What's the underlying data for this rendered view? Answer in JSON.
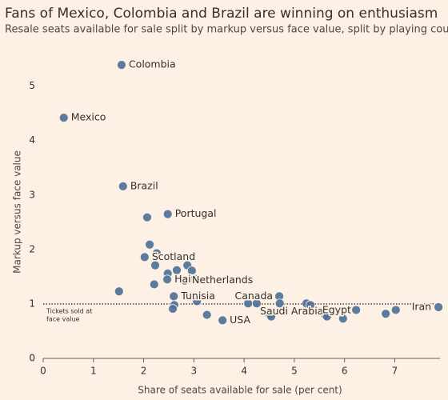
{
  "chart_data": {
    "type": "scatter",
    "title": "Fans of Mexico, Colombia and Brazil are winning on enthusiasm",
    "subtitle": "Resale seats available for sale split by markup versus face value, split by playing country",
    "x_label": "Share of seats available for sale (per cent)",
    "y_label": "Markup versus face value",
    "color": "#4f7199",
    "x": [
      1.56,
      0.41,
      1.59,
      2.48,
      2.07,
      2.12,
      2.26,
      2.02,
      2.23,
      2.87,
      2.66,
      2.96,
      2.48,
      2.47,
      2.82,
      2.21,
      1.51,
      2.6,
      2.61,
      2.58,
      3.06,
      3.26,
      3.57,
      4.08,
      4.25,
      4.7,
      4.71,
      4.51,
      4.54,
      5.24,
      5.32,
      5.51,
      5.62,
      5.65,
      6.23,
      5.97,
      6.82,
      7.02,
      7.87
    ],
    "values": [
      5.39,
      4.42,
      3.16,
      2.65,
      2.59,
      2.09,
      1.93,
      1.86,
      1.71,
      1.71,
      1.62,
      1.61,
      1.56,
      1.45,
      1.43,
      1.36,
      1.23,
      1.14,
      0.98,
      0.91,
      1.05,
      0.8,
      0.7,
      1.01,
      1.01,
      1.14,
      1.01,
      0.8,
      0.77,
      1.01,
      0.98,
      0.86,
      0.79,
      0.77,
      0.89,
      0.73,
      0.82,
      0.89,
      0.94
    ],
    "labels": [
      "Colombia",
      "Mexico",
      "Brazil",
      "Portugal",
      null,
      null,
      null,
      "Scotland",
      null,
      null,
      null,
      null,
      null,
      "Haiti",
      "Netherlands",
      null,
      null,
      "Tunisia",
      null,
      null,
      null,
      null,
      "USA",
      null,
      null,
      "Canada",
      null,
      null,
      "Saudi Arabia",
      null,
      null,
      null,
      "Egypt",
      null,
      null,
      null,
      null,
      null,
      "Iran"
    ],
    "reference_line": {
      "value": 1,
      "label": [
        "Tickets sold at",
        "face value"
      ]
    },
    "xlim": [
      0,
      7.9
    ],
    "ylim": [
      0,
      5.7
    ],
    "xticks": [
      0,
      1,
      2,
      3,
      4,
      5,
      6,
      7
    ],
    "yticks": [
      0,
      1,
      2,
      3,
      4,
      5
    ]
  }
}
